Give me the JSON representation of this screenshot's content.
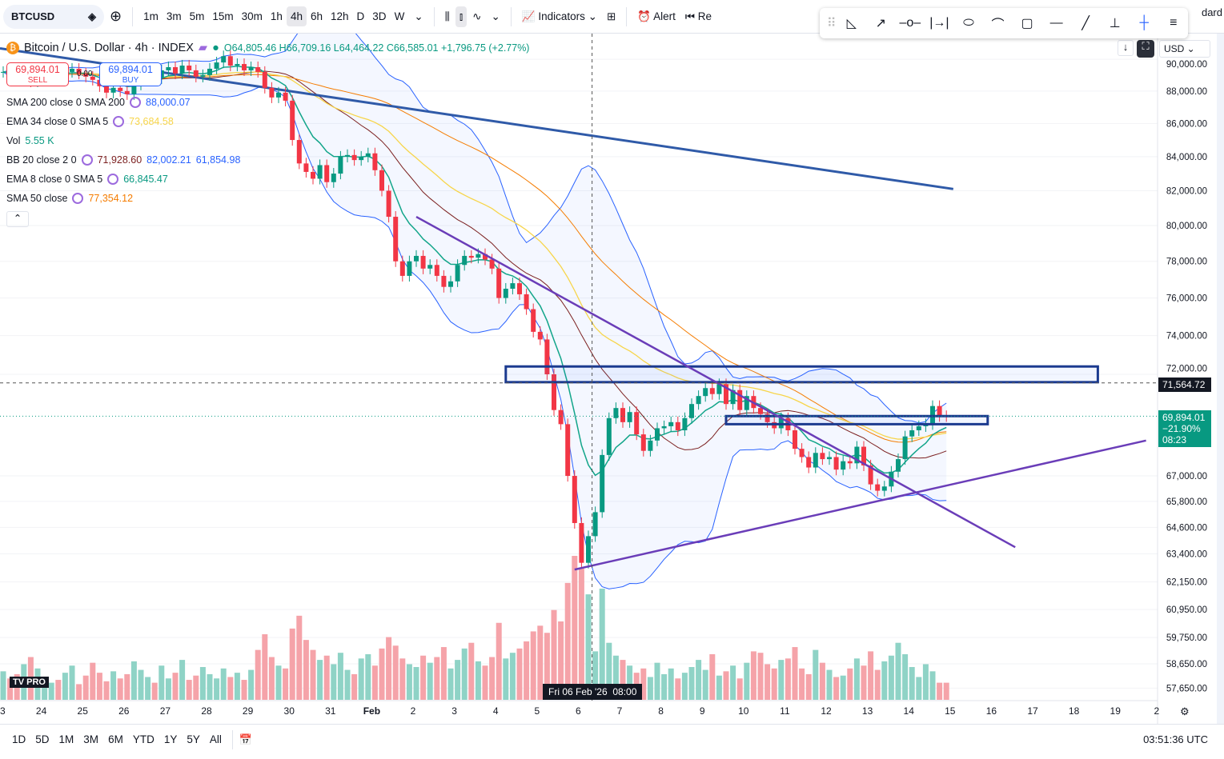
{
  "toolbar": {
    "symbol": "BTCUSD",
    "intervals": [
      "1m",
      "3m",
      "5m",
      "15m",
      "30m",
      "1h",
      "4h",
      "6h",
      "12h",
      "D",
      "3D",
      "W"
    ],
    "active_interval": "4h",
    "indicators": "Indicators",
    "alert": "Alert",
    "replay": "Re",
    "layout_name": "dard"
  },
  "legend": {
    "title": "Bitcoin / U.S. Dollar · 4h · INDEX",
    "o": "O64,805.46",
    "h": "H66,709.16",
    "l": "L64,464.22",
    "c": "C66,585.01",
    "chg": "+1,796.75 (+2.77%)",
    "sell_price": "69,894.01",
    "sell": "SELL",
    "buy_price": "69,894.01",
    "buy": "BUY",
    "spread": "0.00",
    "rows": [
      {
        "name": "SMA 200 close 0 SMA 200",
        "val": "88,000.07",
        "color": "#2962ff"
      },
      {
        "name": "EMA 34 close 0 SMA 5",
        "val": "73,684.58",
        "color": "#f7d54a"
      },
      {
        "name": "Vol",
        "val": "5.55 K",
        "color": "#089981"
      },
      {
        "name": "BB 20 close 2 0",
        "val": "71,928.60",
        "val2": "82,002.21",
        "val3": "61,854.98",
        "color": "#7b1f1f"
      },
      {
        "name": "EMA 8 close 0 SMA 5",
        "val": "66,845.47",
        "color": "#089981"
      },
      {
        "name": "SMA 50 close",
        "val": "77,354.12",
        "color": "#f57c00"
      }
    ]
  },
  "price_axis": {
    "currency": "USD",
    "labels": [
      "90,000.00",
      "88,000.00",
      "86,000.00",
      "84,000.00",
      "82,000.00",
      "80,000.00",
      "78,000.00",
      "76,000.00",
      "74,000.00",
      "72,000.00",
      "67,000.00",
      "65,800.00",
      "64,600.00",
      "63,400.00",
      "62,150.00",
      "60,950.00",
      "59,750.00",
      "58,650.00",
      "57,650.00"
    ],
    "levels": [
      90000,
      88000,
      86000,
      84000,
      82000,
      80000,
      78000,
      76000,
      74000,
      72000,
      67000,
      65800,
      64600,
      63400,
      62150,
      60950,
      59750,
      58650,
      57650
    ],
    "crosshair_price": "71,564.72",
    "crosshair_value": 71564.72,
    "last_price": "69,894.01",
    "last_value": 69894.01,
    "last_change": "−21.90%",
    "countdown": "08:23"
  },
  "time_axis": {
    "labels": [
      "23",
      "24",
      "25",
      "26",
      "27",
      "28",
      "29",
      "30",
      "31",
      "Feb",
      "2",
      "3",
      "4",
      "5",
      "6",
      "7",
      "8",
      "9",
      "10",
      "11",
      "12",
      "13",
      "14",
      "15",
      "16",
      "17",
      "18",
      "19",
      "2"
    ],
    "crosshair_time": "Fri 06 Feb '26",
    "crosshair_clock": "08:00",
    "crosshair_index": 86
  },
  "bottom": {
    "ranges": [
      "1D",
      "5D",
      "1M",
      "3M",
      "6M",
      "YTD",
      "1Y",
      "5Y",
      "All"
    ],
    "clock": "03:51:36 UTC"
  },
  "logo": "TV PRO",
  "colors": {
    "up": "#089981",
    "down": "#f23645",
    "sma200": "#2f5aa8",
    "ema34": "#f7d54a",
    "sma50": "#f57c00",
    "ema8": "#12a58a",
    "bb": "#2962ff",
    "basis": "#7b1f1f",
    "drawing": "#6a3db8",
    "box": "#1b3a8f"
  },
  "chart_data": {
    "type": "candlestick",
    "interval": "4h",
    "start": "Jan 23",
    "closes": [
      89200,
      89000,
      88800,
      89100,
      88600,
      88900,
      89100,
      89300,
      89000,
      89200,
      89400,
      89100,
      88900,
      88700,
      88300,
      87900,
      88200,
      88000,
      87800,
      88400,
      88900,
      89200,
      88800,
      89300,
      89500,
      89100,
      89600,
      89300,
      88900,
      89000,
      89400,
      89800,
      90200,
      89600,
      89700,
      89300,
      89500,
      89200,
      88200,
      87600,
      87900,
      87400,
      85000,
      83600,
      83100,
      82700,
      83500,
      82500,
      83000,
      84000,
      84100,
      83800,
      84000,
      84200,
      83200,
      82000,
      80500,
      78000,
      77200,
      78000,
      78300,
      77600,
      77800,
      77200,
      76600,
      76900,
      77800,
      78300,
      78200,
      78400,
      78100,
      77600,
      76000,
      76500,
      76800,
      76200,
      75400,
      74200,
      73800,
      72000,
      70200,
      69500,
      67000,
      64800,
      63000,
      64200,
      65300,
      68000,
      69800,
      70300,
      69600,
      70100,
      69000,
      68200,
      68700,
      69300,
      69400,
      69600,
      69200,
      69800,
      70500,
      70900,
      71300,
      71000,
      71500,
      70500,
      71200,
      70200,
      70900,
      70300,
      70000,
      69600,
      69300,
      69800,
      69200,
      68300,
      67900,
      67400,
      68100,
      67800,
      67900,
      67300,
      67700,
      67600,
      68400,
      67500,
      66600,
      66300,
      66500,
      67200,
      67800,
      68900,
      69200,
      69400,
      69500,
      70400,
      69900,
      69894
    ],
    "volumes": [
      2,
      1.5,
      1.8,
      2.5,
      3,
      2.2,
      1.6,
      1.2,
      1.4,
      1.9,
      2.4,
      1.1,
      1.7,
      2.6,
      1.9,
      1.3,
      2,
      1.5,
      1.8,
      2.7,
      2.1,
      1.6,
      1.2,
      2.4,
      1.5,
      1.9,
      2.8,
      1.4,
      1.7,
      2.3,
      1.8,
      1.5,
      2.2,
      1.6,
      1.9,
      1.4,
      2.1,
      3.5,
      4.6,
      3,
      2.4,
      2.2,
      5,
      5.9,
      4.2,
      3.5,
      2.8,
      3.1,
      2.5,
      3.3,
      2.1,
      1.8,
      2.9,
      3.2,
      2.4,
      3.6,
      4.4,
      3.8,
      2.9,
      2.5,
      2.3,
      3.1,
      2.6,
      3,
      3.7,
      2.2,
      2.8,
      3.6,
      4,
      2.7,
      2.4,
      3,
      5.4,
      2.9,
      3.3,
      3.6,
      4.1,
      4.8,
      5.2,
      4.7,
      6.3,
      5.5,
      8.2,
      10.1,
      9.2,
      7.4,
      3.4,
      7.8,
      4,
      3.1,
      2.8,
      2.4,
      1.9,
      2.2,
      1.6,
      2.6,
      1.8,
      2.2,
      1.5,
      1.9,
      2.3,
      2.8,
      2.1,
      3.2,
      1.7,
      2,
      2.4,
      1.5,
      2.6,
      3.4,
      3.3,
      2.5,
      2.2,
      2.8,
      2.9,
      3.7,
      2.2,
      1.8,
      3.5,
      2.6,
      2.1,
      1.6,
      1.7,
      2.2,
      2.9,
      2.4,
      3.4,
      2.1,
      2.7,
      3.1,
      4,
      3.2,
      2.3,
      1.6,
      2.5,
      2,
      1.2,
      1.2
    ],
    "sma200": [
      90700,
      82100
    ],
    "drawings": {
      "resistance_box": [
        71600,
        72400,
        73,
        159
      ],
      "support_box": [
        69500,
        69900,
        105,
        143
      ],
      "down_trendline": [
        60,
        80500,
        147,
        63700
      ],
      "up_trendline": [
        83,
        62700,
        166,
        68700
      ]
    }
  }
}
